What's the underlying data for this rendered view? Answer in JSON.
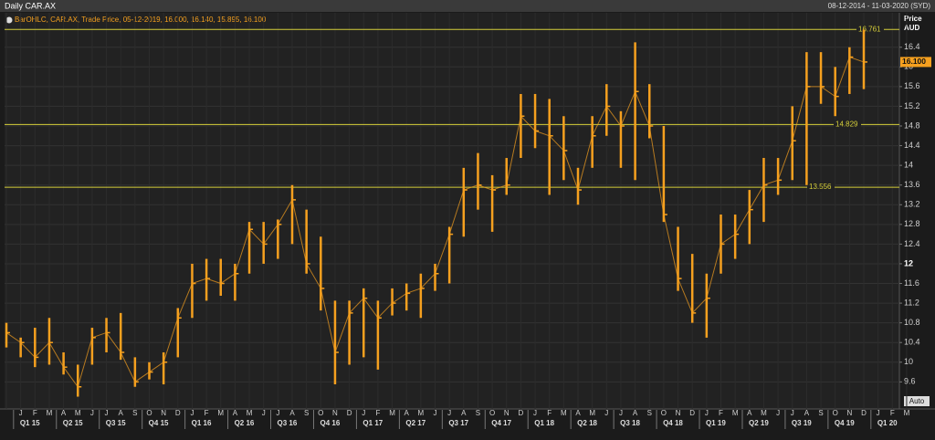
{
  "header": {
    "title": "Daily CAR.AX",
    "range": "08-12-2014 - 11-03-2020 (SYD)"
  },
  "chart_data": {
    "type": "ohlc",
    "legend": "BarOHLC, CAR.AX, Trade Price, 05-12-2019, 16.000, 16.140, 15.895, 16.100",
    "y_axis_label": "Price",
    "y_axis_unit": "AUD",
    "categories": [
      null,
      "J",
      "F",
      "M",
      "A",
      "M",
      "J",
      "J",
      "A",
      "S",
      "O",
      "N",
      "D",
      "J",
      "F",
      "M",
      "A",
      "M",
      "J",
      "J",
      "A",
      "S",
      "O",
      "N",
      "D",
      "J",
      "F",
      "M",
      "A",
      "M",
      "J",
      "J",
      "A",
      "S",
      "O",
      "N",
      "D",
      "J",
      "F",
      "M",
      "A",
      "M",
      "J",
      "J",
      "A",
      "S",
      "O",
      "N",
      "D",
      "J",
      "F",
      "M",
      "A",
      "M",
      "J",
      "J",
      "A",
      "S",
      "O",
      "N",
      "D",
      "J",
      "F",
      "M"
    ],
    "quarters": [
      "Q1 15",
      "Q2 15",
      "Q3 15",
      "Q4 15",
      "Q1 16",
      "Q2 16",
      "Q3 16",
      "Q4 16",
      "Q1 17",
      "Q2 17",
      "Q3 17",
      "Q4 17",
      "Q1 18",
      "Q2 18",
      "Q3 18",
      "Q4 18",
      "Q1 19",
      "Q2 19",
      "Q3 19",
      "Q4 19",
      "Q1 20"
    ],
    "high": [
      10.8,
      10.5,
      10.7,
      10.9,
      10.2,
      9.95,
      10.7,
      10.9,
      11.0,
      10.1,
      10.0,
      10.2,
      11.1,
      12.0,
      12.1,
      12.1,
      12.0,
      12.85,
      12.85,
      12.9,
      13.6,
      13.1,
      12.55,
      11.25,
      11.25,
      11.5,
      11.25,
      11.5,
      11.6,
      11.8,
      12.0,
      12.75,
      13.95,
      14.25,
      13.8,
      14.15,
      15.45,
      15.45,
      15.35,
      15.0,
      13.95,
      15.0,
      15.65,
      15.1,
      16.5,
      15.65,
      14.8,
      12.75,
      12.2,
      11.8,
      13.0,
      13.0,
      13.5,
      14.15,
      14.15,
      15.2,
      16.3,
      16.3,
      16.0,
      16.4,
      16.76,
      null,
      null,
      null
    ],
    "low": [
      10.3,
      10.1,
      9.9,
      9.95,
      9.75,
      9.3,
      9.95,
      10.2,
      10.05,
      9.5,
      9.65,
      9.55,
      10.1,
      10.9,
      11.25,
      11.35,
      11.25,
      11.8,
      12.0,
      12.1,
      12.4,
      11.8,
      11.05,
      9.55,
      9.95,
      10.1,
      9.85,
      10.95,
      11.05,
      10.9,
      11.45,
      11.6,
      12.55,
      13.1,
      12.65,
      13.4,
      14.15,
      14.35,
      13.4,
      13.7,
      13.2,
      13.95,
      14.6,
      13.95,
      13.7,
      14.55,
      12.85,
      11.45,
      10.8,
      10.5,
      11.8,
      12.1,
      12.4,
      12.85,
      13.4,
      13.7,
      13.6,
      15.25,
      15.0,
      15.45,
      15.55,
      null,
      null,
      null
    ],
    "close": [
      10.6,
      10.4,
      10.1,
      10.4,
      9.9,
      9.5,
      10.5,
      10.6,
      10.2,
      9.6,
      9.8,
      10.0,
      10.9,
      11.6,
      11.7,
      11.6,
      11.8,
      12.7,
      12.4,
      12.8,
      13.3,
      12.0,
      11.5,
      10.2,
      11.0,
      11.3,
      10.9,
      11.2,
      11.4,
      11.5,
      11.8,
      12.6,
      13.5,
      13.6,
      13.5,
      13.6,
      15.0,
      14.7,
      14.6,
      14.3,
      13.5,
      14.6,
      15.2,
      14.8,
      15.5,
      14.8,
      13.0,
      11.7,
      11.0,
      11.3,
      12.4,
      12.6,
      13.1,
      13.6,
      13.7,
      14.5,
      15.6,
      15.6,
      15.4,
      16.2,
      16.1,
      null,
      null,
      null
    ],
    "color": "#f5a01f",
    "ylim": [
      9.05,
      17.1
    ],
    "yticks": [
      9.6,
      10,
      10.4,
      10.8,
      11.2,
      11.6,
      12,
      12.4,
      12.8,
      13.2,
      13.6,
      14,
      14.4,
      14.8,
      15.2,
      15.6,
      16,
      16.4
    ],
    "levels": [
      16.761,
      14.829,
      13.556
    ],
    "level_color": "#d6cf3a",
    "last_price": {
      "value": 16.1,
      "label": "16.100"
    },
    "grid": true
  },
  "controls": {
    "auto": "Auto"
  }
}
